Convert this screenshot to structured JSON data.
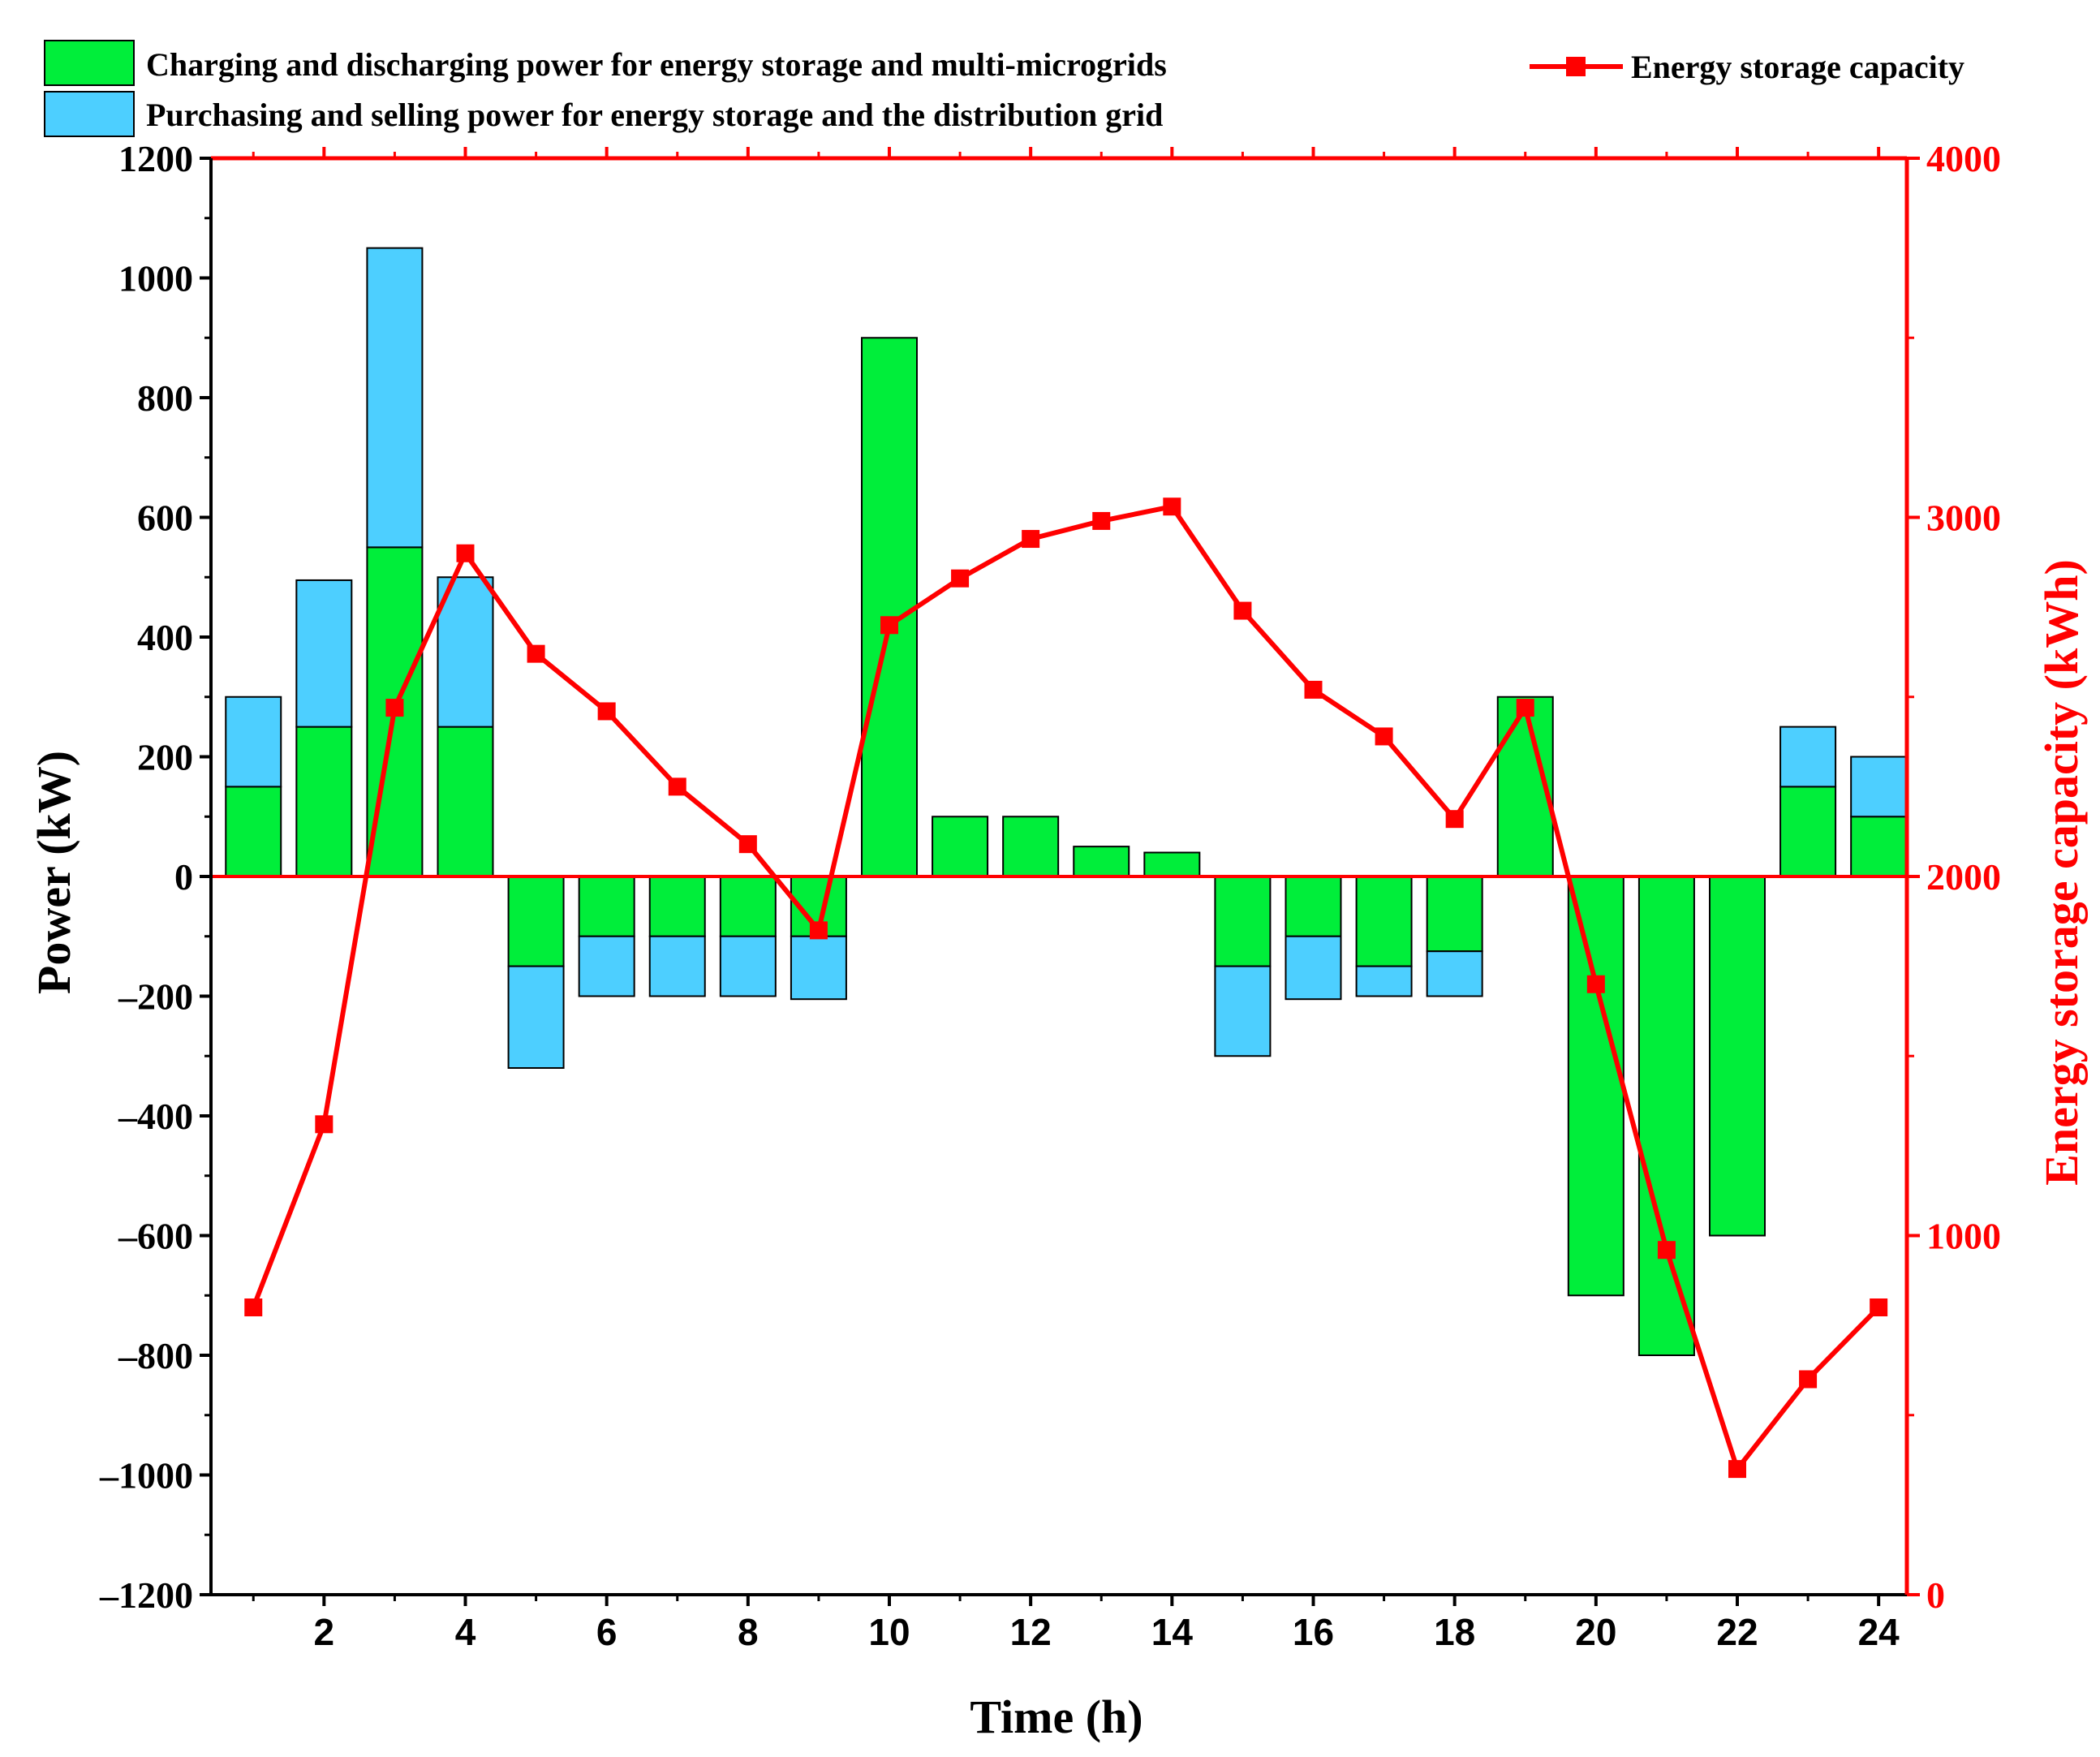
{
  "chart_data": {
    "type": "bar",
    "subtype": "stacked bar with line on secondary axis",
    "xlabel": "Time (h)",
    "ylabel": "Power (kW)",
    "y2label": "Energy storage capacity (kWh)",
    "xlim": [
      0.4,
      24.4
    ],
    "ylim": [
      -1200,
      1200
    ],
    "y2lim": [
      0,
      4000
    ],
    "x_ticks": [
      2,
      4,
      6,
      8,
      10,
      12,
      14,
      16,
      18,
      20,
      22,
      24
    ],
    "y_ticks": [
      1200,
      1000,
      800,
      600,
      400,
      200,
      0,
      -200,
      -400,
      -600,
      -800,
      -1000,
      -1200
    ],
    "y_tick_labels": [
      "1200",
      "1000",
      "800",
      "600",
      "400",
      "200",
      "0",
      "–200",
      "–400",
      "–600",
      "–800",
      "–1000",
      "–1200"
    ],
    "y2_ticks": [
      4000,
      3000,
      2000,
      1000,
      0
    ],
    "x": [
      1,
      2,
      3,
      4,
      5,
      6,
      7,
      8,
      9,
      10,
      11,
      12,
      13,
      14,
      15,
      16,
      17,
      18,
      19,
      20,
      21,
      22,
      23,
      24
    ],
    "series": [
      {
        "name": "Charging and discharging power for energy storage and multi-microgrids",
        "kind": "bar",
        "axis": "left",
        "color": "#00ee3a",
        "values": [
          150,
          250,
          550,
          250,
          -150,
          -100,
          -100,
          -100,
          -100,
          900,
          100,
          100,
          50,
          40,
          -150,
          -100,
          -150,
          -125,
          300,
          -700,
          -800,
          -600,
          150,
          100
        ]
      },
      {
        "name": "Purchasing and selling power for energy storage and the distribution grid",
        "kind": "bar",
        "axis": "left",
        "color": "#4dcfff",
        "values": [
          150,
          245,
          500,
          250,
          -170,
          -100,
          -100,
          -100,
          -105,
          0,
          0,
          0,
          0,
          0,
          -150,
          -105,
          -50,
          -75,
          0,
          0,
          0,
          0,
          100,
          100
        ]
      },
      {
        "name": "Energy storage capacity",
        "kind": "line",
        "axis": "right",
        "color": "#ff0000",
        "values": [
          800,
          1310,
          2470,
          2900,
          2620,
          2460,
          2250,
          2090,
          1850,
          2700,
          2830,
          2940,
          2990,
          3030,
          2740,
          2520,
          2390,
          2160,
          2470,
          1700,
          960,
          350,
          600,
          800
        ]
      }
    ]
  }
}
